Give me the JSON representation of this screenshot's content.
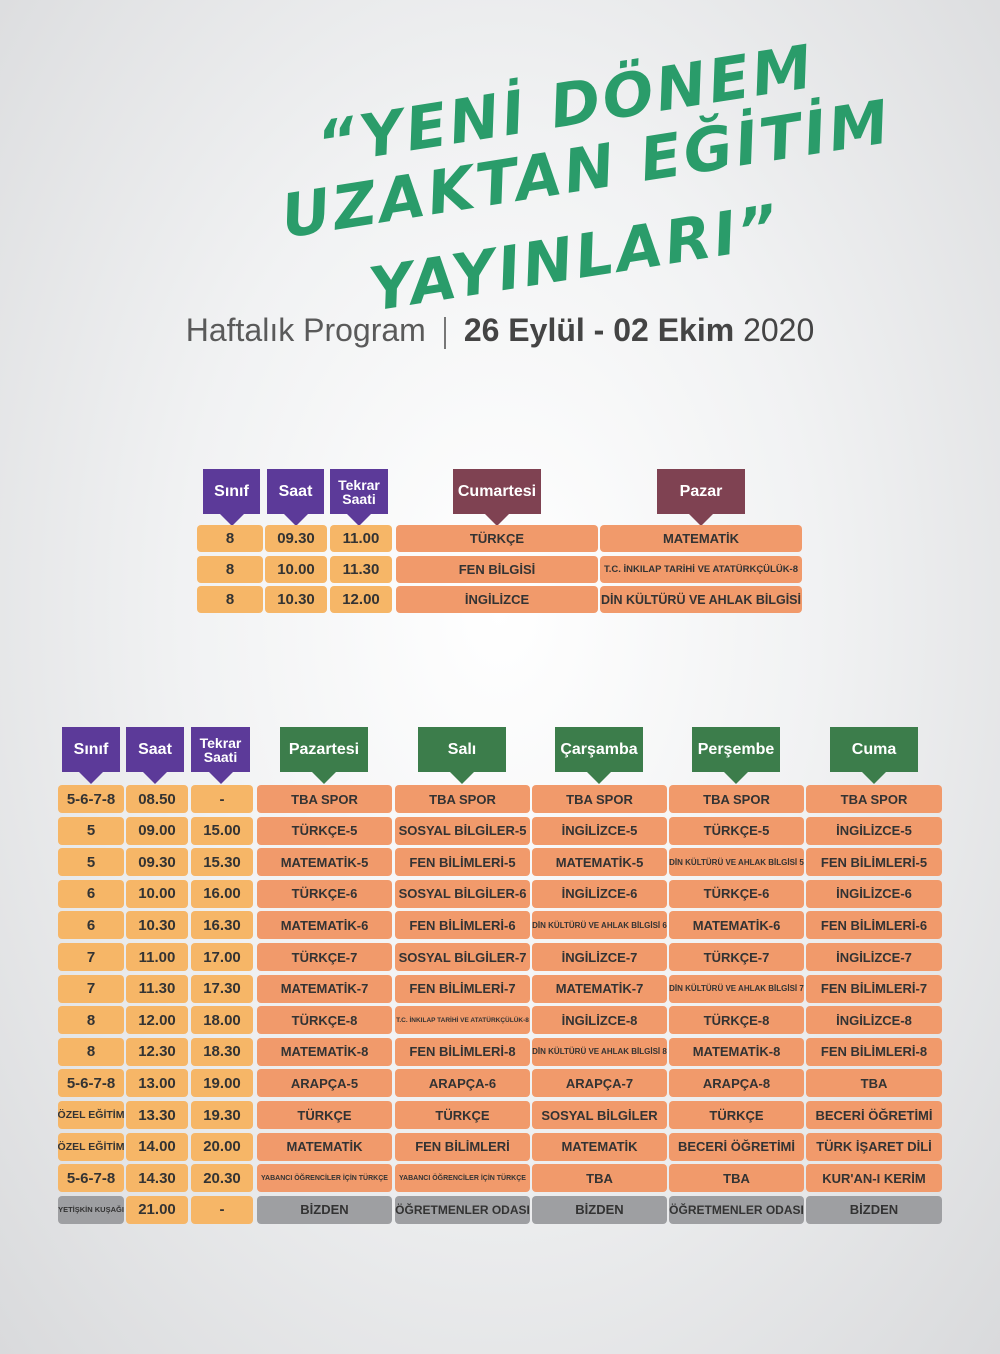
{
  "title": {
    "line1": "“YENİ DÖNEM",
    "line2": "UZAKTAN EĞİTİM",
    "line3": "YAYINLARI”"
  },
  "subtitle": {
    "label": "Haftalık Program",
    "dates": "26 Eylül - 02 Ekim",
    "year": "2020"
  },
  "weekend": {
    "headers": [
      "Sınıf",
      "Saat",
      "Tekrar Saati",
      "Cumartesi",
      "Pazar"
    ],
    "rows": [
      [
        "8",
        "09.30",
        "11.00",
        "TÜRKÇE",
        "MATEMATİK"
      ],
      [
        "8",
        "10.00",
        "11.30",
        "FEN BİLGİSİ",
        "T.C. İNKILAP TARİHİ VE ATATÜRKÇÜLÜK-8"
      ],
      [
        "8",
        "10.30",
        "12.00",
        "İNGİLİZCE",
        "DİN KÜLTÜRÜ VE AHLAK BİLGİSİ"
      ]
    ]
  },
  "weekday": {
    "headers": [
      "Sınıf",
      "Saat",
      "Tekrar Saati",
      "Pazartesi",
      "Salı",
      "Çarşamba",
      "Perşembe",
      "Cuma"
    ],
    "rows": [
      [
        "5-6-7-8",
        "08.50",
        "-",
        "TBA SPOR",
        "TBA SPOR",
        "TBA SPOR",
        "TBA SPOR",
        "TBA SPOR"
      ],
      [
        "5",
        "09.00",
        "15.00",
        "TÜRKÇE-5",
        "SOSYAL BİLGİLER-5",
        "İNGİLİZCE-5",
        "TÜRKÇE-5",
        "İNGİLİZCE-5"
      ],
      [
        "5",
        "09.30",
        "15.30",
        "MATEMATİK-5",
        "FEN BİLİMLERİ-5",
        "MATEMATİK-5",
        "DİN KÜLTÜRÜ VE AHLAK BİLGİSİ 5",
        "FEN BİLİMLERİ-5"
      ],
      [
        "6",
        "10.00",
        "16.00",
        "TÜRKÇE-6",
        "SOSYAL BİLGİLER-6",
        "İNGİLİZCE-6",
        "TÜRKÇE-6",
        "İNGİLİZCE-6"
      ],
      [
        "6",
        "10.30",
        "16.30",
        "MATEMATİK-6",
        "FEN BİLİMLERİ-6",
        "DİN KÜLTÜRÜ VE AHLAK BİLGİSİ 6",
        "MATEMATİK-6",
        "FEN BİLİMLERİ-6"
      ],
      [
        "7",
        "11.00",
        "17.00",
        "TÜRKÇE-7",
        "SOSYAL BİLGİLER-7",
        "İNGİLİZCE-7",
        "TÜRKÇE-7",
        "İNGİLİZCE-7"
      ],
      [
        "7",
        "11.30",
        "17.30",
        "MATEMATİK-7",
        "FEN BİLİMLERİ-7",
        "MATEMATİK-7",
        "DİN KÜLTÜRÜ VE AHLAK BİLGİSİ 7",
        "FEN BİLİMLERİ-7"
      ],
      [
        "8",
        "12.00",
        "18.00",
        "TÜRKÇE-8",
        "T.C. İNKILAP TARİHİ VE ATATÜRKÇÜLÜK-8",
        "İNGİLİZCE-8",
        "TÜRKÇE-8",
        "İNGİLİZCE-8"
      ],
      [
        "8",
        "12.30",
        "18.30",
        "MATEMATİK-8",
        "FEN BİLİMLERİ-8",
        "DİN KÜLTÜRÜ VE AHLAK BİLGİSİ 8",
        "MATEMATİK-8",
        "FEN BİLİMLERİ-8"
      ],
      [
        "5-6-7-8",
        "13.00",
        "19.00",
        "ARAPÇA-5",
        "ARAPÇA-6",
        "ARAPÇA-7",
        "ARAPÇA-8",
        "TBA"
      ],
      [
        "ÖZEL EĞİTİM",
        "13.30",
        "19.30",
        "TÜRKÇE",
        "TÜRKÇE",
        "SOSYAL BİLGİLER",
        "TÜRKÇE",
        "BECERİ ÖĞRETİMİ"
      ],
      [
        "ÖZEL EĞİTİM",
        "14.00",
        "20.00",
        "MATEMATİK",
        "FEN BİLİMLERİ",
        "MATEMATİK",
        "BECERİ ÖĞRETİMİ",
        "TÜRK İŞARET DİLİ"
      ],
      [
        "5-6-7-8",
        "14.30",
        "20.30",
        "YABANCI ÖĞRENCİLER İÇİN TÜRKÇE",
        "YABANCI ÖĞRENCİLER İÇİN TÜRKÇE",
        "TBA",
        "TBA",
        "KUR'AN-I KERİM"
      ],
      [
        "YETİŞKİN KUŞAĞI",
        "21.00",
        "-",
        "BİZDEN",
        "ÖĞRETMENLER ODASI",
        "BİZDEN",
        "ÖĞRETMENLER ODASI",
        "BİZDEN"
      ]
    ]
  },
  "colors": {
    "title_green": "#2a9c6a",
    "header_purple": "#5c3a99",
    "header_maroon": "#7f4252",
    "header_green": "#3c7d4b",
    "cell_yellow": "#f6b667",
    "cell_orange": "#f19a6b",
    "cell_gray": "#9e9fa2"
  }
}
